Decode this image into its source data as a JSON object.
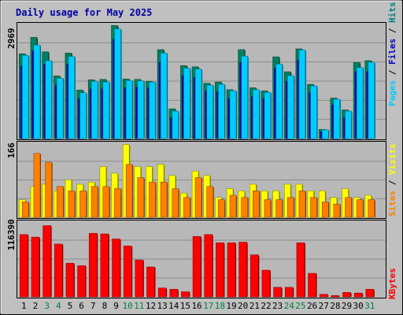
{
  "chart_data": [
    {
      "type": "bar",
      "title": "Daily usage for May 2025",
      "ylabel_max": "2969",
      "legend": [
        {
          "text": "Pages",
          "color": "#00ccff"
        },
        {
          "text": "Files",
          "color": "#0000c0"
        },
        {
          "text": "Hits",
          "color": "#008080"
        }
      ],
      "categories": [
        "1",
        "2",
        "3",
        "4",
        "5",
        "6",
        "7",
        "8",
        "9",
        "10",
        "11",
        "12",
        "13",
        "14",
        "15",
        "16",
        "17",
        "18",
        "19",
        "20",
        "21",
        "22",
        "23",
        "24",
        "25",
        "26",
        "27",
        "28",
        "29",
        "30",
        "31"
      ],
      "weekend_days": [
        "3",
        "4",
        "10",
        "11",
        "17",
        "18",
        "24",
        "25",
        "31"
      ],
      "ylim": [
        0,
        2969
      ],
      "series": [
        {
          "name": "Hits",
          "values": [
            2220,
            2650,
            2270,
            1640,
            2240,
            1270,
            1540,
            1550,
            2960,
            1560,
            1550,
            1500,
            2330,
            780,
            1910,
            1880,
            1450,
            1480,
            1280,
            2330,
            1330,
            1250,
            2140,
            1750,
            2350,
            1420,
            240,
            1060,
            750,
            1990,
            2040
          ],
          "color": "#00805e"
        },
        {
          "name": "Files",
          "values": [
            1900,
            2300,
            1950,
            1400,
            1950,
            1050,
            1300,
            1300,
            2600,
            1330,
            1350,
            1320,
            2000,
            550,
            1650,
            1600,
            1250,
            1230,
            1050,
            2000,
            1100,
            1050,
            1850,
            1500,
            2050,
            1200,
            180,
            880,
            550,
            1750,
            1750
          ],
          "color": "#0000c0"
        },
        {
          "name": "Pages",
          "values": [
            2180,
            2450,
            2040,
            1580,
            2150,
            1200,
            1500,
            1480,
            2870,
            1520,
            1510,
            1480,
            2240,
            720,
            1840,
            1820,
            1400,
            1420,
            1250,
            2160,
            1280,
            1210,
            1950,
            1650,
            2320,
            1380,
            230,
            1030,
            720,
            1860,
            2000
          ],
          "color": "#00ccff"
        }
      ]
    },
    {
      "type": "bar",
      "ylabel_max": "166",
      "legend": [
        {
          "text": "Sites",
          "color": "#ff8000"
        },
        {
          "text": "Visits",
          "color": "#ffff00"
        }
      ],
      "ylim": [
        0,
        166
      ],
      "series": [
        {
          "name": "Visits",
          "values": [
            40,
            70,
            75,
            60,
            85,
            75,
            80,
            115,
            100,
            165,
            115,
            115,
            120,
            95,
            55,
            105,
            95,
            45,
            65,
            60,
            75,
            60,
            60,
            75,
            75,
            60,
            60,
            45,
            65,
            45,
            50
          ],
          "color": "#ffff00"
        },
        {
          "name": "Sites",
          "values": [
            35,
            145,
            125,
            70,
            60,
            60,
            70,
            70,
            65,
            120,
            90,
            80,
            80,
            65,
            45,
            90,
            70,
            40,
            50,
            45,
            60,
            40,
            40,
            45,
            60,
            45,
            35,
            30,
            45,
            40,
            40
          ],
          "color": "#ff8000"
        }
      ]
    },
    {
      "type": "bar",
      "ylabel_max": "116390",
      "legend": [
        {
          "text": "KBytes",
          "color": "#ff0000"
        }
      ],
      "ylim": [
        0,
        116390
      ],
      "series": [
        {
          "name": "KBytes",
          "values": [
            98000,
            94000,
            112000,
            83000,
            53000,
            49000,
            100000,
            99000,
            91000,
            80000,
            58000,
            47000,
            14000,
            12000,
            8000,
            95000,
            98000,
            85000,
            85000,
            86000,
            66000,
            42000,
            15000,
            15000,
            85000,
            37000,
            4000,
            2000,
            7000,
            6000,
            12000
          ],
          "color": "#ff0000"
        }
      ]
    }
  ]
}
